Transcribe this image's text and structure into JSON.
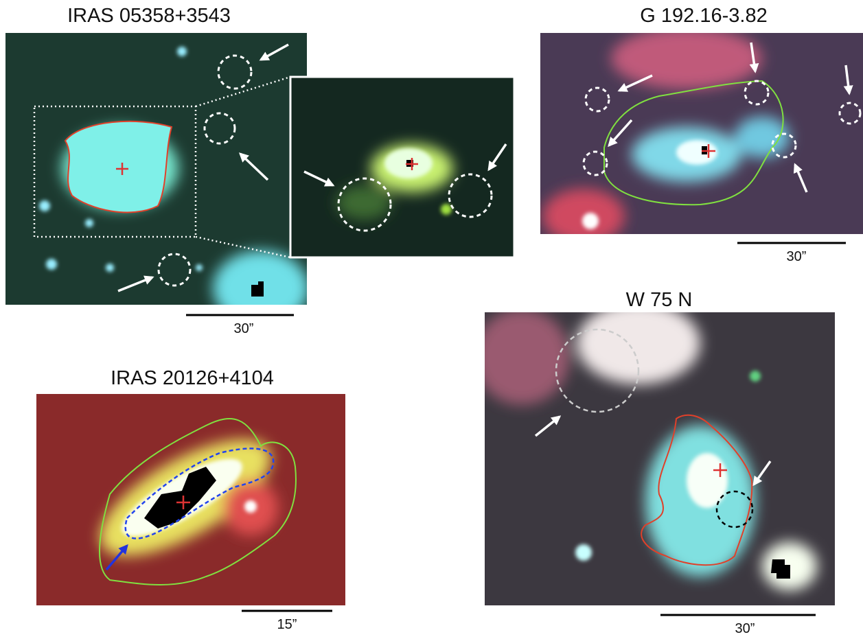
{
  "panels": [
    {
      "title": "IRAS 05358+3543",
      "scale_label": "30”"
    },
    {
      "title": "G 192.16-3.82",
      "scale_label": "30”"
    },
    {
      "title": "W 75 N",
      "scale_label": "30”"
    },
    {
      "title": "IRAS 20126+4104",
      "scale_label": "15”"
    }
  ]
}
